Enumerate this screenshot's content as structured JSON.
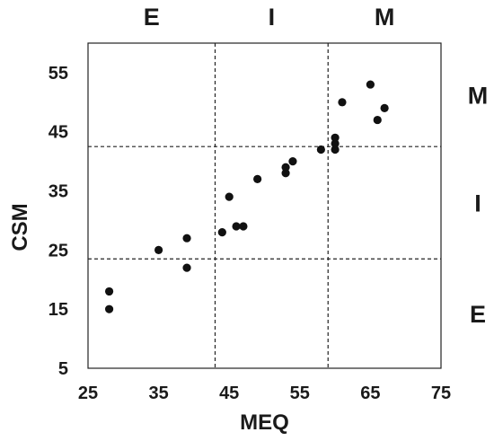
{
  "chart_data": {
    "type": "scatter",
    "xlabel": "MEQ",
    "ylabel": "CSM",
    "xlim": [
      25,
      75
    ],
    "ylim": [
      5,
      60
    ],
    "x_ticks": [
      25,
      35,
      45,
      55,
      65,
      75
    ],
    "y_ticks": [
      5,
      15,
      25,
      35,
      45,
      55
    ],
    "grid": false,
    "threshold_lines": {
      "x": [
        43,
        59
      ],
      "y": [
        23.5,
        42.5
      ]
    },
    "zone_labels_top": [
      "E",
      "I",
      "M"
    ],
    "zone_labels_right": [
      "M",
      "I",
      "E"
    ],
    "series": [
      {
        "points": [
          {
            "x": 28,
            "y": 18
          },
          {
            "x": 28,
            "y": 15
          },
          {
            "x": 35,
            "y": 25
          },
          {
            "x": 39,
            "y": 27
          },
          {
            "x": 39,
            "y": 22
          },
          {
            "x": 44,
            "y": 28
          },
          {
            "x": 45,
            "y": 34
          },
          {
            "x": 46,
            "y": 29
          },
          {
            "x": 47,
            "y": 29
          },
          {
            "x": 49,
            "y": 37
          },
          {
            "x": 53,
            "y": 38
          },
          {
            "x": 53,
            "y": 39
          },
          {
            "x": 54,
            "y": 40
          },
          {
            "x": 58,
            "y": 42
          },
          {
            "x": 60,
            "y": 42
          },
          {
            "x": 60,
            "y": 43
          },
          {
            "x": 60,
            "y": 44
          },
          {
            "x": 61,
            "y": 50
          },
          {
            "x": 65,
            "y": 53
          },
          {
            "x": 66,
            "y": 47
          },
          {
            "x": 67,
            "y": 49
          }
        ]
      }
    ]
  }
}
